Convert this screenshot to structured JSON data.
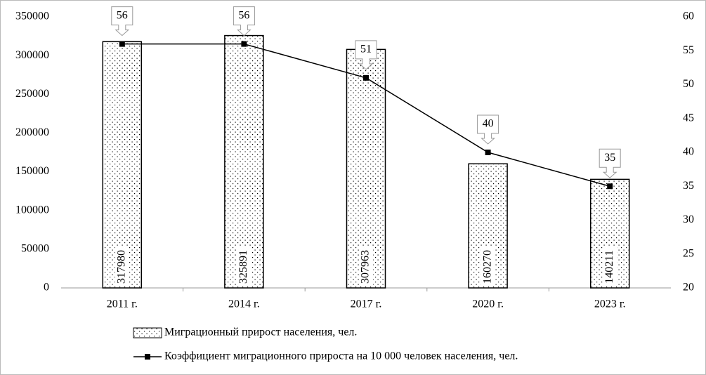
{
  "chart_data": {
    "type": "combo",
    "categories": [
      "2011 г.",
      "2014 г.",
      "2017 г.",
      "2020 г.",
      "2023 г."
    ],
    "series": [
      {
        "name": "Миграционный прирост населения, чел.",
        "type": "bar",
        "color": "#000000",
        "values": [
          317980,
          325891,
          307963,
          160270,
          140211
        ]
      },
      {
        "name": "Коэффициент миграционного прироста на 10 000 человек населения, чел.",
        "type": "line",
        "axis": "y2",
        "color": "#000000",
        "values": [
          56,
          56,
          51,
          40,
          35
        ]
      }
    ],
    "ylim": [
      0,
      350000
    ],
    "yticks": [
      0,
      50000,
      100000,
      150000,
      200000,
      250000,
      300000,
      350000
    ],
    "y2lim": [
      20,
      60
    ],
    "y2ticks": [
      20,
      25,
      30,
      35,
      40,
      45,
      50,
      55,
      60
    ],
    "legend": "bottom"
  }
}
